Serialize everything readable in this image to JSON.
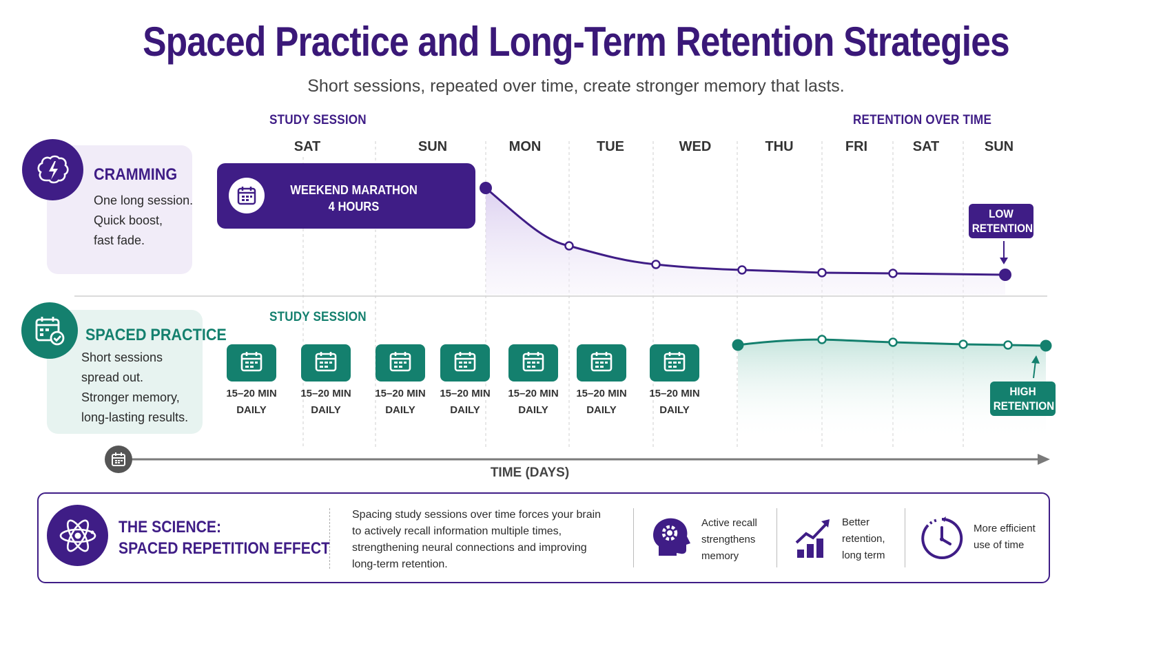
{
  "title": "Spaced Practice and Long-Term Retention Strategies",
  "subtitle": "Short sessions, repeated over time, create stronger memory that lasts.",
  "colors": {
    "purple": "#3f1d86",
    "purple_light": "#f1ecf8",
    "teal": "#14806e",
    "teal_light": "#e7f3f0",
    "axis": "#777777"
  },
  "top": {
    "study_label": "STUDY SESSION",
    "retention_label": "RETENTION OVER TIME",
    "days": [
      "SAT",
      "SUN",
      "MON",
      "TUE",
      "WED",
      "THU",
      "FRI",
      "SAT",
      "SUN"
    ]
  },
  "cramming": {
    "icon": "brain-lightning-icon",
    "title": "CRAMMING",
    "lines": [
      "One long session.",
      "Quick boost,",
      "fast fade."
    ],
    "marathon": {
      "icon": "calendar-icon",
      "line1": "WEEKEND MARATHON",
      "line2": "4 HOURS"
    },
    "badge": {
      "line1": "LOW",
      "line2": "RETENTION"
    }
  },
  "spaced": {
    "icon": "calendar-check-icon",
    "title": "SPACED PRACTICE",
    "lines": [
      "Short sessions",
      "spread out.",
      "Stronger memory,",
      "long-lasting results."
    ],
    "study_label": "STUDY SESSION",
    "sessions": [
      {
        "line1": "15–20 MIN",
        "line2": "DAILY"
      },
      {
        "line1": "15–20 MIN",
        "line2": "DAILY"
      },
      {
        "line1": "15–20 MIN",
        "line2": "DAILY"
      },
      {
        "line1": "15–20 MIN",
        "line2": "DAILY"
      },
      {
        "line1": "15–20 MIN",
        "line2": "DAILY"
      },
      {
        "line1": "15–20 MIN",
        "line2": "DAILY"
      },
      {
        "line1": "15–20 MIN",
        "line2": "DAILY"
      }
    ],
    "badge": {
      "line1": "HIGH",
      "line2": "RETENTION"
    }
  },
  "time_axis": {
    "icon": "calendar-icon",
    "label": "TIME (DAYS)"
  },
  "science": {
    "icon": "atom-icon",
    "title_line1": "THE SCIENCE:",
    "title_line2": "SPACED REPETITION EFFECT",
    "body": [
      "Spacing study sessions over time forces your brain",
      "to actively recall information multiple times,",
      "strengthening neural connections and improving",
      "long-term retention."
    ],
    "benefits": [
      {
        "icon": "head-gear-icon",
        "lines": [
          "Active recall",
          "strengthens",
          "memory"
        ]
      },
      {
        "icon": "growth-chart-icon",
        "lines": [
          "Better",
          "retention,",
          "long term"
        ]
      },
      {
        "icon": "clock-icon",
        "lines": [
          "More efficient",
          "use of time"
        ]
      }
    ]
  }
}
